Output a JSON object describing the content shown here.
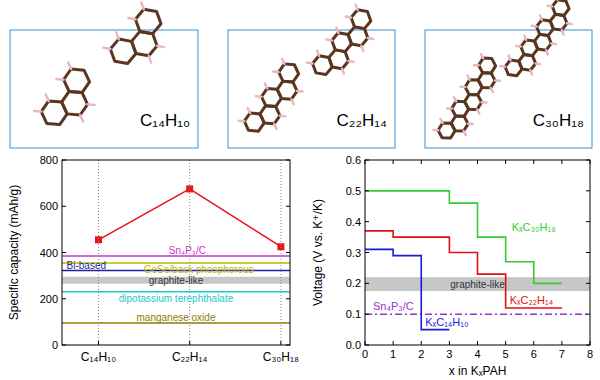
{
  "structures": [
    {
      "label": "C₁₄H₁₀"
    },
    {
      "label": "C₂₂H₁₄"
    },
    {
      "label": "C₃₀H₁₈"
    }
  ],
  "chart_data": [
    {
      "type": "line",
      "y_label": "Specific capacity (mAh/g)",
      "categories": [
        "C₁₄H₁₀",
        "C₂₂H₁₄",
        "C₃₀H₁₈"
      ],
      "ylim": [
        0,
        800
      ],
      "yticks": [
        0,
        200,
        400,
        600,
        800
      ],
      "series": [
        {
          "color": "#e8141b",
          "marker": "square",
          "line_style": "solid",
          "values": [
            455,
            675,
            425
          ]
        }
      ],
      "reference_lines": [
        {
          "label": "Sn₄P₃/C",
          "value": 385,
          "color": "#cc33cc"
        },
        {
          "label": "GeSe/back phosphorous",
          "value": 355,
          "color": "#b8b800"
        },
        {
          "label": "Bi-based",
          "value": 322,
          "color": "#1f1f9f"
        },
        {
          "label": "dipotassium terephthalate",
          "value": 230,
          "color": "#22c8c8"
        },
        {
          "label": "manganese oxide",
          "value": 95,
          "color": "#8b7d00"
        }
      ],
      "reference_bands": [
        {
          "label": "graphite-like",
          "range": [
            265,
            295
          ],
          "color": "#b4b4b4"
        }
      ]
    },
    {
      "type": "line",
      "y_label": "Voltage (V vs. K⁺/K)",
      "x_label": "x in KₓPAH",
      "xlim": [
        0,
        8
      ],
      "xticks": [
        0,
        1,
        2,
        3,
        4,
        5,
        6,
        7,
        8
      ],
      "ylim": [
        0,
        0.6
      ],
      "yticks": [
        {
          "value": 0,
          "label": "0.0"
        },
        0.1,
        0.2,
        0.3,
        0.4,
        0.5,
        0.6
      ],
      "series": [
        {
          "name": "KₓC₁₄H₁₀",
          "color": "#1a1adb",
          "line_style": "solid",
          "x": [
            0,
            1,
            1,
            2,
            2,
            3
          ],
          "values": [
            0.31,
            0.31,
            0.29,
            0.29,
            0.05,
            0.05
          ]
        },
        {
          "name": "KₓC₂₂H₁₄",
          "color": "#e01010",
          "line_style": "solid",
          "x": [
            0,
            1,
            1,
            3,
            3,
            4,
            4,
            5,
            5,
            7
          ],
          "values": [
            0.37,
            0.37,
            0.35,
            0.35,
            0.3,
            0.3,
            0.23,
            0.23,
            0.12,
            0.12
          ]
        },
        {
          "name": "KₓC₃₀H₁₈",
          "color": "#33cc33",
          "line_style": "solid",
          "x": [
            0,
            3,
            3,
            4,
            4,
            5,
            5,
            6,
            6,
            7
          ],
          "values": [
            0.5,
            0.5,
            0.46,
            0.46,
            0.35,
            0.35,
            0.27,
            0.27,
            0.2,
            0.2
          ]
        }
      ],
      "reference_lines": [
        {
          "label": "Sn₄P₃/C",
          "value": 0.1,
          "color": "#9933cc",
          "line_style": "dashdot"
        }
      ],
      "reference_bands": [
        {
          "label": "graphite-like",
          "range": [
            0.175,
            0.22
          ],
          "color": "#b4b4b4"
        }
      ]
    }
  ]
}
